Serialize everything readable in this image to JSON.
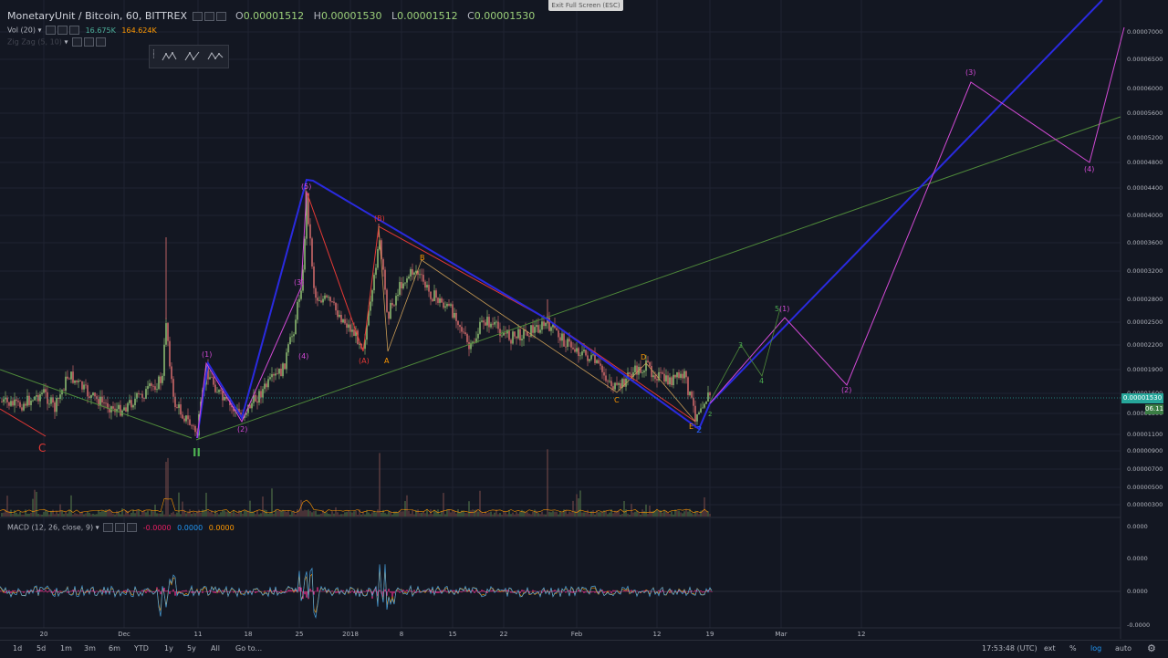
{
  "header": {
    "symbol": "MonetaryUnit / Bitcoin, 60, BITTREX",
    "o_label": "O",
    "o_value": "0.00001512",
    "h_label": "H",
    "h_value": "0.00001530",
    "l_label": "L",
    "l_value": "0.00001512",
    "c_label": "C",
    "c_value": "0.00001530"
  },
  "volume_indicator": {
    "label": "Vol (20)",
    "value1": "16.675K",
    "value2": "164.624K"
  },
  "zigzag_indicator": {
    "label": "Zig Zag (5, 10)"
  },
  "macd_indicator": {
    "label": "MACD (12, 26, close, 9)",
    "value1": "-0.0000",
    "value2": "0.0000",
    "value3": "0.0000"
  },
  "exit_fullscreen": "Exit Full Screen (ESC)",
  "price_axis": [
    "0.00007000",
    "0.00006500",
    "0.00006000",
    "0.00005600",
    "0.00005200",
    "0.00004800",
    "0.00004400",
    "0.00004000",
    "0.00003600",
    "0.00003200",
    "0.00002800",
    "0.00002500",
    "0.00002200",
    "0.00001900",
    "0.00001600",
    "0.00001300",
    "0.00001100",
    "0.00000900",
    "0.00000700",
    "0.00000500",
    "0.00000300"
  ],
  "macd_axis": [
    "0.0000",
    "0.0000",
    "0.0000",
    "-0.0000"
  ],
  "current_price_tag": "0.00001530",
  "secondary_tag": "06.11",
  "time_axis": [
    "20",
    "Dec",
    "11",
    "18",
    "25",
    "2018",
    "8",
    "15",
    "22",
    "Feb",
    "12",
    "19",
    "Mar",
    "12"
  ],
  "wave_labels": {
    "c_red": "C",
    "ii_green": "II",
    "w1": "(1)",
    "w2": "(2)",
    "w3": "(3)",
    "w4": "(4)",
    "w5": "(5)",
    "a_paren": "(A)",
    "b_paren": "(B)",
    "a": "A",
    "b": "B",
    "c": "C",
    "d": "D",
    "e": "E",
    "two_blue": "2",
    "small2": "2",
    "small3": "3",
    "small4": "4",
    "small5": "5",
    "f1": "(1)",
    "f2": "(2)",
    "f3": "(3)",
    "f4": "(4)"
  },
  "bottom_bar": {
    "ranges": [
      "1d",
      "5d",
      "1m",
      "3m",
      "6m",
      "YTD",
      "1y",
      "5y",
      "All"
    ],
    "goto": "Go to...",
    "clock": "17:53:48 (UTC)",
    "ext": "ext",
    "percent": "%",
    "log": "log",
    "auto": "auto"
  },
  "colors": {
    "background": "#131722",
    "up": "#9cd07a",
    "down": "#e57373",
    "zigzag": "#2962ff",
    "wave": "#d34ad6",
    "trend": "#4f8a3a",
    "red": "#e53935",
    "orange": "#ff9800"
  }
}
